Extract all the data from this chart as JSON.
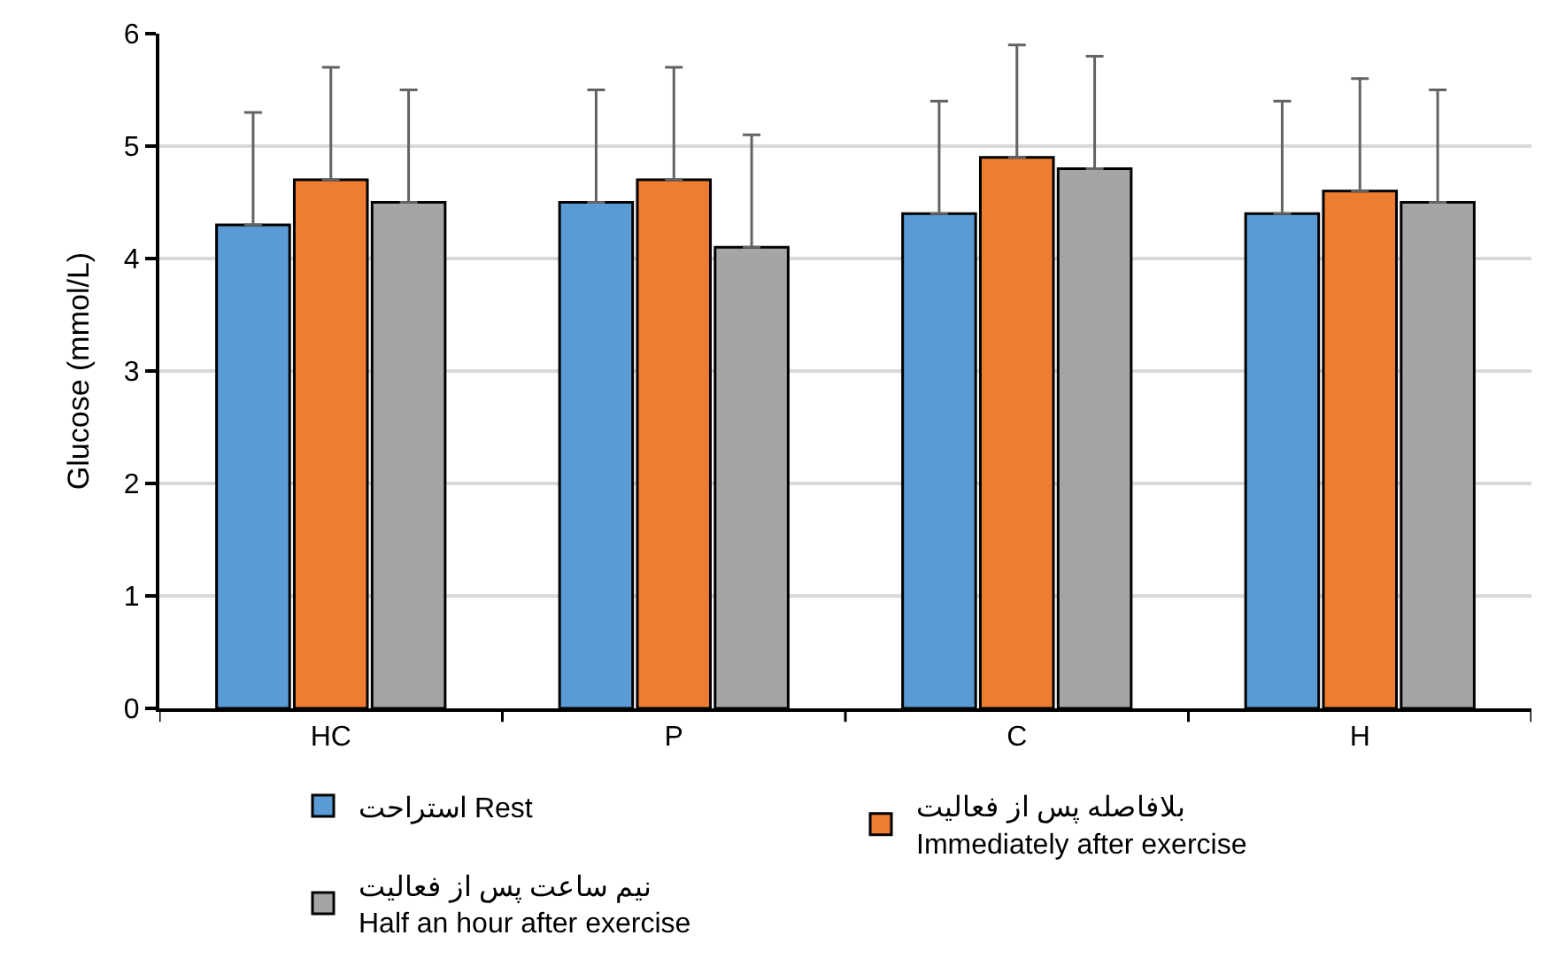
{
  "chart_data": {
    "type": "bar",
    "ylabel": "Glucose (mmol/L)",
    "categories": [
      "HC",
      "P",
      "C",
      "H"
    ],
    "series": [
      {
        "name": "استراحت Rest",
        "color": "#5b9bd5",
        "values": [
          4.3,
          4.5,
          4.4,
          4.4
        ],
        "errors": [
          [
            4.3,
            5.3
          ],
          [
            4.5,
            5.5
          ],
          [
            4.4,
            5.4
          ],
          [
            4.4,
            5.4
          ]
        ]
      },
      {
        "name": "بلافاصله پس از فعالیت\nImmediately after exercise",
        "color": "#ed7d31",
        "values": [
          4.7,
          4.7,
          4.9,
          4.6
        ],
        "errors": [
          [
            4.7,
            5.7
          ],
          [
            4.7,
            5.7
          ],
          [
            4.9,
            5.9
          ],
          [
            4.6,
            5.6
          ]
        ]
      },
      {
        "name": "نیم ساعت پس از فعالیت\nHalf an hour after exercise",
        "color": "#a5a5a5",
        "values": [
          4.5,
          4.1,
          4.8,
          4.5
        ],
        "errors": [
          [
            4.5,
            5.5
          ],
          [
            4.1,
            5.1
          ],
          [
            4.8,
            5.8
          ],
          [
            4.5,
            5.5
          ]
        ]
      }
    ],
    "ylim": [
      0,
      6
    ],
    "yticks": [
      0,
      1,
      2,
      3,
      4,
      5,
      6
    ],
    "grid": "y",
    "legend": "bottom"
  }
}
